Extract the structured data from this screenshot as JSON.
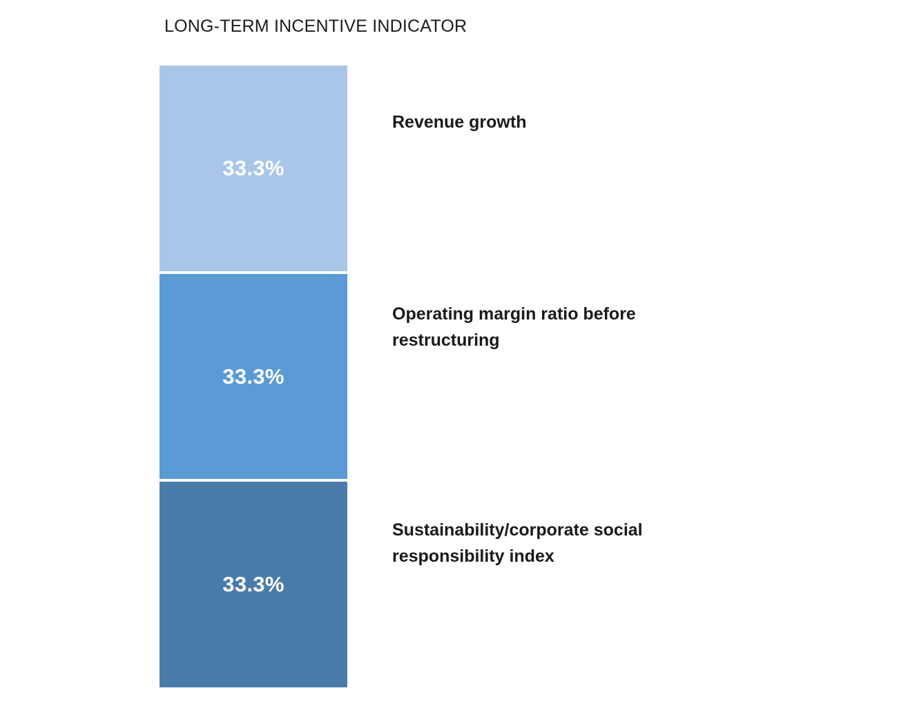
{
  "chart_data": {
    "type": "bar",
    "stacked": true,
    "orientation": "vertical",
    "title": "LONG-TERM INCENTIVE INDICATOR",
    "unit": "%",
    "categories": [
      "Revenue growth",
      "Operating margin ratio before restructuring",
      "Sustainability/corporate social responsibility index"
    ],
    "values": [
      33.3,
      33.3,
      33.3
    ],
    "segments": [
      {
        "label": "Revenue growth",
        "value": 33.3,
        "value_label": "33.3%",
        "color": "#A9C6E8"
      },
      {
        "label": "Operating margin ratio before restructuring",
        "value": 33.3,
        "value_label": "33.3%",
        "color": "#5B9BD5"
      },
      {
        "label": "Sustainability/corporate social responsibility index",
        "value": 33.3,
        "value_label": "33.3%",
        "color": "#4A7CAB"
      }
    ],
    "value_label_color": "#FFFFFF",
    "background": "#FFFFFF",
    "legend_position": "right",
    "grid": false
  }
}
